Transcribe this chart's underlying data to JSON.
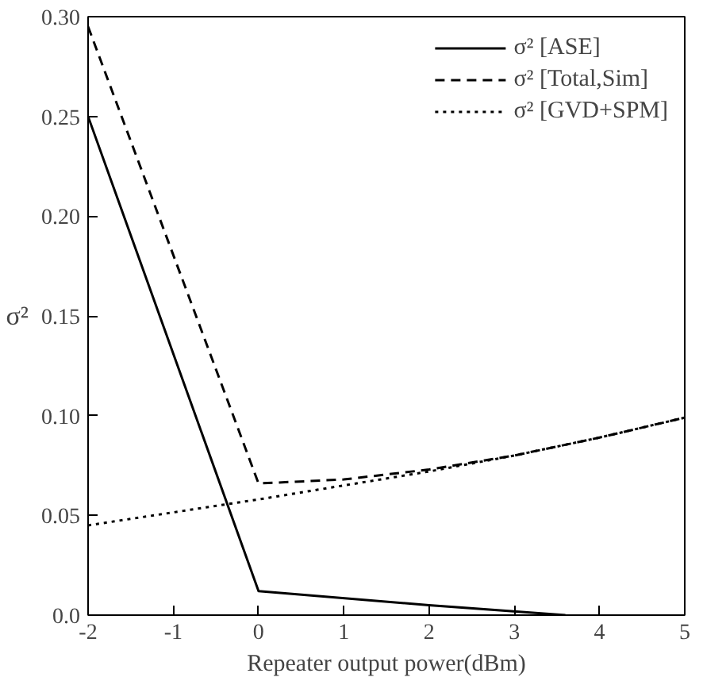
{
  "chart_data": {
    "type": "line",
    "xlabel": "Repeater output power(dBm)",
    "ylabel": "σ²",
    "xlim": [
      -2,
      5
    ],
    "xticks": [
      -2,
      -1,
      0,
      1,
      2,
      3,
      4,
      5
    ],
    "ylim": [
      0,
      0.3
    ],
    "yticks": [
      {
        "value": 0,
        "label": "0.0"
      },
      0.05,
      {
        "value": 0.1,
        "label": "0.10"
      },
      0.15,
      {
        "value": 0.2,
        "label": "0.20"
      },
      0.25,
      {
        "value": 0.3,
        "label": "0.30"
      }
    ],
    "grid": false,
    "legend": "top right",
    "marker": "none",
    "series": [
      {
        "name": "σ² [ASE]",
        "color": "#000000",
        "line_style": "solid",
        "x": [
          -2,
          0,
          2,
          3.6
        ],
        "values": [
          0.25,
          0.012,
          0.005,
          0.0
        ]
      },
      {
        "name": "σ² [Total,Sim]",
        "color": "#000000",
        "line_style": "dashed",
        "x": [
          -2,
          0,
          1,
          2,
          3,
          4,
          5
        ],
        "values": [
          0.295,
          0.066,
          0.068,
          0.073,
          0.08,
          0.089,
          0.099
        ]
      },
      {
        "name": "σ² [GVD+SPM]",
        "color": "#000000",
        "line_style": "dotted",
        "x": [
          -2,
          0,
          1,
          2,
          3,
          4,
          5
        ],
        "values": [
          0.045,
          0.058,
          0.065,
          0.072,
          0.08,
          0.089,
          0.099
        ]
      }
    ]
  }
}
